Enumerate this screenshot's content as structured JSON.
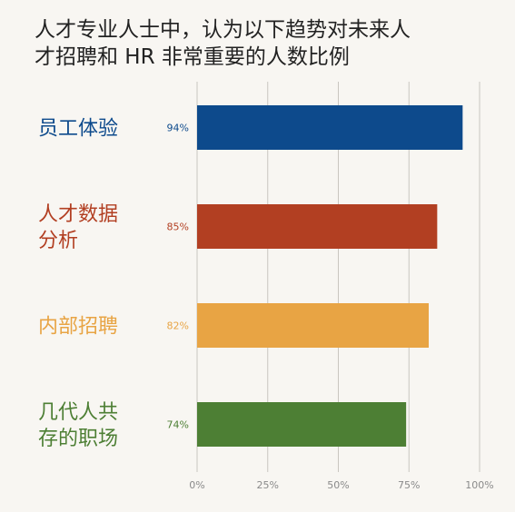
{
  "chart_data": {
    "type": "bar",
    "orientation": "horizontal",
    "title": [
      "人才专业人士中，认为以下趋势对未来人",
      "才招聘和 HR 非常重要的人数比例"
    ],
    "categories": [
      {
        "lines": [
          "员工体验"
        ],
        "value": 94,
        "value_label": "94%",
        "color": "#0d4a8c"
      },
      {
        "lines": [
          "人才数据",
          "分析"
        ],
        "value": 85,
        "value_label": "85%",
        "color": "#b23f22"
      },
      {
        "lines": [
          "内部招聘"
        ],
        "value": 82,
        "value_label": "82%",
        "color": "#e8a444"
      },
      {
        "lines": [
          "几代人共",
          "存的职场"
        ],
        "value": 74,
        "value_label": "74%",
        "color": "#4d7f34"
      }
    ],
    "x_ticks": [
      {
        "value": 0,
        "label": "0%"
      },
      {
        "value": 25,
        "label": "25%"
      },
      {
        "value": 50,
        "label": "50%"
      },
      {
        "value": 75,
        "label": "75%"
      },
      {
        "value": 100,
        "label": "100%"
      }
    ],
    "xlim": [
      0,
      100
    ],
    "grid": true,
    "legend": "none",
    "background": "#f8f6f2"
  }
}
